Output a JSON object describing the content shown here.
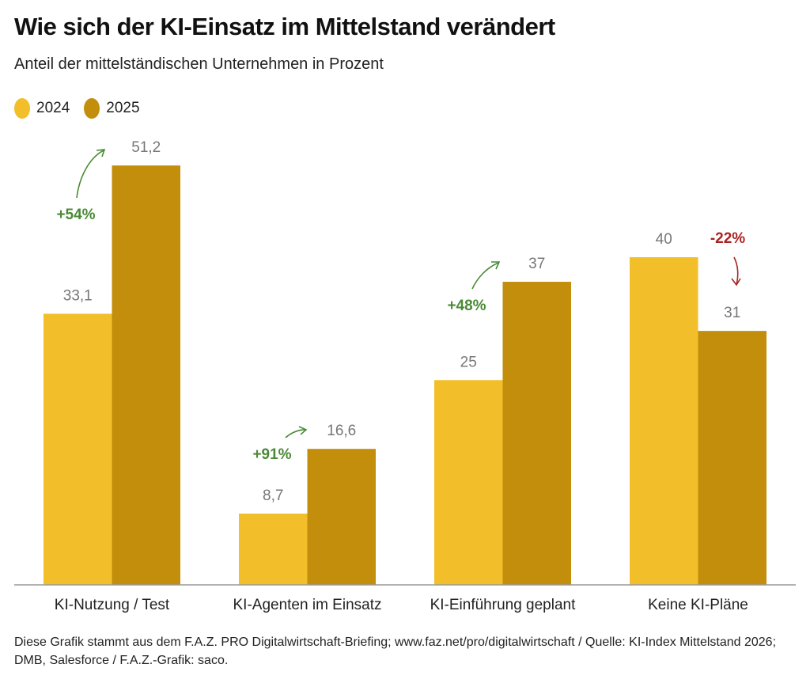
{
  "header": {
    "title": "Wie sich der KI-Einsatz im Mittelstand verändert",
    "subtitle": "Anteil der mittelständischen Unternehmen in Prozent"
  },
  "chart_data": {
    "type": "bar",
    "title": "Wie sich der KI-Einsatz im Mittelstand verändert",
    "subtitle": "Anteil der mittelständischen Unternehmen in Prozent",
    "xlabel": "",
    "ylabel": "",
    "ylim": [
      0,
      51.2
    ],
    "grid": false,
    "legend_position": "top-left",
    "categories": [
      "KI-Nutzung / Test",
      "KI-Agenten im Einsatz",
      "KI-Einführung geplant",
      "Keine KI-Pläne"
    ],
    "series": [
      {
        "name": "2024",
        "color": "#f2bf2a",
        "values": [
          33.1,
          8.7,
          25,
          40
        ],
        "labels": [
          "33,1",
          "8,7",
          "25",
          "40"
        ]
      },
      {
        "name": "2025",
        "color": "#c38e0b",
        "values": [
          51.2,
          16.6,
          37,
          31
        ],
        "labels": [
          "51,2",
          "16,6",
          "37",
          "31"
        ]
      }
    ],
    "annotations": [
      {
        "category": "KI-Nutzung / Test",
        "text": "+54%",
        "direction": "up",
        "color": "#4a8a35"
      },
      {
        "category": "KI-Agenten im Einsatz",
        "text": "+91%",
        "direction": "up",
        "color": "#4a8a35"
      },
      {
        "category": "KI-Einführung geplant",
        "text": "+48%",
        "direction": "up",
        "color": "#4a8a35"
      },
      {
        "category": "Keine KI-Pläne",
        "text": "-22%",
        "direction": "down",
        "color": "#a82222"
      }
    ]
  },
  "footer": {
    "text": "Diese Grafik stammt aus dem F.A.Z. PRO Digitalwirtschaft-Briefing; www.faz.net/pro/digitalwirtschaft  / Quelle: KI-Index Mittelstand 2026; DMB, Salesforce / F.A.Z.-Grafik: saco."
  }
}
